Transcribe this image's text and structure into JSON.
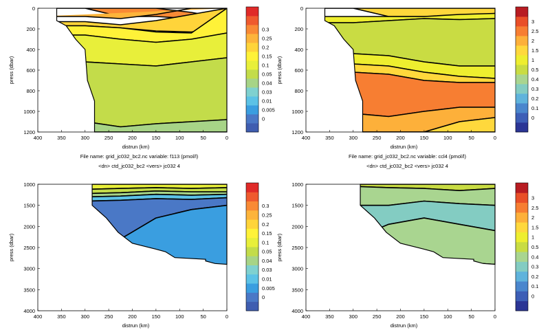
{
  "palettes": {
    "f113": [
      "#3f5db0",
      "#4a78c6",
      "#3a9ee0",
      "#5cc2e6",
      "#7fd1d0",
      "#a7d487",
      "#c3dc4a",
      "#e8ef3a",
      "#fff238",
      "#ffd43a",
      "#fdb43b",
      "#f98a35",
      "#ef5a2e",
      "#e02a28"
    ],
    "ccl4": [
      "#2b3595",
      "#3d5eb6",
      "#4a86cd",
      "#5fb3dc",
      "#83ccc2",
      "#a9d590",
      "#c9dc43",
      "#eeee2f",
      "#ffd83c",
      "#fdb03a",
      "#f77e32",
      "#e94f28",
      "#b81c22"
    ]
  },
  "chart_data": [
    {
      "id": "top-left",
      "type": "contour",
      "palette": "f113",
      "xlabel": "distrun  (km)",
      "ylabel": "press  (dbar)",
      "xlim": [
        400,
        0
      ],
      "ylim": [
        1200,
        0
      ],
      "xticks": [
        "400",
        "350",
        "300",
        "250",
        "200",
        "150",
        "100",
        "50",
        "0"
      ],
      "yticks": [
        "0",
        "200",
        "400",
        "600",
        "800",
        "1000",
        "1200"
      ],
      "colorbar_labels": [
        "0",
        "0.005",
        "0.01",
        "0.03",
        "0.04",
        "0.05",
        "0.1",
        "0.15",
        "0.2",
        "0.25",
        "0.3"
      ],
      "caption_line1": "File name:  grid_jc032_bc2.nc        variable: f113 (pmol/l)",
      "caption_line2": "<dn>  ctd_jc032_bc2  <vers>  jc032     4",
      "bands": [
        {
          "ci": 11,
          "y": [
            [
              0,
              0
            ],
            [
              80,
              0
            ],
            [
              80,
              0
            ],
            [
              100,
              40
            ],
            [
              60,
              100
            ],
            [
              0,
              80
            ]
          ]
        },
        {
          "ci": 10,
          "y": [
            [
              80,
              120
            ],
            [
              100,
              140
            ],
            [
              60,
              160
            ],
            [
              0,
              130
            ]
          ]
        },
        {
          "ci": 9,
          "y": [
            [
              130,
              170
            ],
            [
              160,
              190
            ],
            [
              120,
              220
            ],
            [
              60,
              230
            ],
            [
              0,
              170
            ]
          ]
        },
        {
          "ci": 8,
          "y": [
            [
              170,
              260
            ],
            [
              190,
              300
            ],
            [
              230,
              330
            ],
            [
              240,
              300
            ],
            [
              0,
              240
            ]
          ]
        },
        {
          "ci": 7,
          "y": [
            [
              260,
              520
            ],
            [
              300,
              540
            ],
            [
              330,
              560
            ],
            [
              300,
              520
            ],
            [
              240,
              480
            ]
          ]
        },
        {
          "ci": 6,
          "y": [
            [
              520,
              1100
            ],
            [
              540,
              1150
            ],
            [
              560,
              1120
            ],
            [
              520,
              1100
            ],
            [
              480,
              1080
            ]
          ]
        },
        {
          "ci": 5,
          "y": [
            [
              1100,
              1200
            ],
            [
              1150,
              1200
            ],
            [
              1120,
              1200
            ],
            [
              1100,
              1200
            ],
            [
              1080,
              1200
            ]
          ]
        }
      ]
    },
    {
      "id": "top-right",
      "type": "contour",
      "palette": "ccl4",
      "xlabel": "distrun  (km)",
      "ylabel": "press  (dbar)",
      "xlim": [
        400,
        0
      ],
      "ylim": [
        1200,
        0
      ],
      "xticks": [
        "400",
        "350",
        "300",
        "250",
        "200",
        "150",
        "100",
        "50",
        "0"
      ],
      "yticks": [
        "0",
        "200",
        "400",
        "600",
        "800",
        "1000",
        "1200"
      ],
      "colorbar_labels": [
        "0",
        "0.1",
        "0.2",
        "0.3",
        "0.4",
        "0.5",
        "1",
        "1.5",
        "2",
        "2.5",
        "3"
      ],
      "caption_line1": "File name:  grid_jc032_bc2.nc        variable: ccl4 (pmol/l)",
      "caption_line2": "<dn>  ctd_jc032_bc2  <vers>  jc032     4",
      "bands": [
        {
          "ci": 8,
          "y": [
            [
              0,
              0
            ],
            [
              80,
              0
            ],
            [
              80,
              0
            ],
            [
              80,
              0
            ],
            [
              50,
              0
            ]
          ]
        },
        {
          "ci": 7,
          "y": [
            [
              80,
              140
            ],
            [
              80,
              120
            ],
            [
              80,
              100
            ],
            [
              60,
              110
            ],
            [
              50,
              100
            ]
          ]
        },
        {
          "ci": 6,
          "y": [
            [
              140,
              440
            ],
            [
              120,
              460
            ],
            [
              100,
              520
            ],
            [
              110,
              560
            ],
            [
              100,
              560
            ]
          ]
        },
        {
          "ci": 7,
          "y": [
            [
              440,
              540
            ],
            [
              460,
              560
            ],
            [
              520,
              620
            ],
            [
              560,
              660
            ],
            [
              560,
              680
            ]
          ]
        },
        {
          "ci": 8,
          "y": [
            [
              540,
              620
            ],
            [
              560,
              640
            ],
            [
              620,
              700
            ],
            [
              660,
              720
            ],
            [
              680,
              720
            ]
          ]
        },
        {
          "ci": 10,
          "y": [
            [
              620,
              1020
            ],
            [
              640,
              1050
            ],
            [
              700,
              1000
            ],
            [
              720,
              960
            ],
            [
              720,
              960
            ]
          ]
        },
        {
          "ci": 9,
          "y": [
            [
              1020,
              1200
            ],
            [
              1050,
              1200
            ],
            [
              1000,
              1200
            ],
            [
              960,
              1100
            ],
            [
              960,
              1060
            ]
          ]
        },
        {
          "ci": 8,
          "y": [
            [
              1200,
              1200
            ],
            [
              1200,
              1200
            ],
            [
              1200,
              1200
            ],
            [
              1100,
              1200
            ],
            [
              1060,
              1200
            ]
          ]
        }
      ]
    },
    {
      "id": "bottom-left",
      "type": "contour",
      "palette": "f113",
      "xlabel": "distrun  (km)",
      "ylabel": "press  (dbar)",
      "xlim": [
        400,
        0
      ],
      "ylim": [
        4000,
        1000
      ],
      "xticks": [
        "400",
        "350",
        "300",
        "250",
        "200",
        "150",
        "100",
        "50",
        "0"
      ],
      "yticks": [
        "1000",
        "1500",
        "2000",
        "2500",
        "3000",
        "3500",
        "4000"
      ],
      "colorbar_labels": [
        "0",
        "0.005",
        "0.01",
        "0.03",
        "0.04",
        "0.05",
        "0.1",
        "0.15",
        "0.2",
        "0.25",
        "0.3"
      ],
      "caption_line1": "",
      "caption_line2": "",
      "bands": [
        {
          "ci": 8,
          "y": [
            [
              1000,
              1000
            ],
            [
              1000,
              1000
            ],
            [
              1000,
              1000
            ],
            [
              1000,
              1000
            ],
            [
              1000,
              1000
            ]
          ]
        },
        {
          "ci": 7,
          "y": [
            [
              1000,
              1120
            ],
            [
              1000,
              1100
            ],
            [
              1000,
              1080
            ],
            [
              1000,
              1100
            ],
            [
              1000,
              1080
            ]
          ]
        },
        {
          "ci": 6,
          "y": [
            [
              1120,
              1220
            ],
            [
              1100,
              1200
            ],
            [
              1080,
              1160
            ],
            [
              1100,
              1180
            ],
            [
              1080,
              1180
            ]
          ]
        },
        {
          "ci": 5,
          "y": [
            [
              1220,
              1300
            ],
            [
              1200,
              1280
            ],
            [
              1160,
              1240
            ],
            [
              1180,
              1260
            ],
            [
              1180,
              1240
            ]
          ]
        },
        {
          "ci": 3,
          "y": [
            [
              1300,
              1400
            ],
            [
              1280,
              1380
            ],
            [
              1240,
              1340
            ],
            [
              1260,
              1360
            ],
            [
              1240,
              1320
            ]
          ]
        },
        {
          "ci": 1,
          "y": [
            [
              1400,
              2400
            ],
            [
              1380,
              2300
            ],
            [
              1340,
              1800
            ],
            [
              1360,
              1600
            ],
            [
              1320,
              1500
            ]
          ]
        },
        {
          "ci": 2,
          "y": [
            [
              2400,
              2600
            ],
            [
              2300,
              2700
            ],
            [
              1800,
              2800
            ],
            [
              1600,
              2900
            ],
            [
              1500,
              3000
            ]
          ]
        }
      ]
    },
    {
      "id": "bottom-right",
      "type": "contour",
      "palette": "ccl4",
      "xlabel": "distrun  (km)",
      "ylabel": "press  (dbar)",
      "xlim": [
        400,
        0
      ],
      "ylim": [
        4000,
        1000
      ],
      "xticks": [
        "400",
        "350",
        "300",
        "250",
        "200",
        "150",
        "100",
        "50",
        "0"
      ],
      "yticks": [
        "1000",
        "1500",
        "2000",
        "2500",
        "3000",
        "3500",
        "4000"
      ],
      "colorbar_labels": [
        "0",
        "0.1",
        "0.2",
        "0.3",
        "0.4",
        "0.5",
        "1",
        "1.5",
        "2",
        "2.5",
        "3"
      ],
      "caption_line1": "",
      "caption_line2": "",
      "bands": [
        {
          "ci": 6,
          "y": [
            [
              1000,
              1050
            ],
            [
              1000,
              1080
            ],
            [
              1000,
              1100
            ],
            [
              1000,
              1150
            ],
            [
              1000,
              1100
            ]
          ]
        },
        {
          "ci": 5,
          "y": [
            [
              1050,
              1500
            ],
            [
              1080,
              1500
            ],
            [
              1100,
              1400
            ],
            [
              1150,
              1460
            ],
            [
              1100,
              1500
            ]
          ]
        },
        {
          "ci": 4,
          "y": [
            [
              1500,
              2300
            ],
            [
              1500,
              1950
            ],
            [
              1400,
              1800
            ],
            [
              1460,
              1950
            ],
            [
              1500,
              2100
            ]
          ]
        },
        {
          "ci": 5,
          "y": [
            [
              2300,
              2600
            ],
            [
              1950,
              2700
            ],
            [
              1800,
              2750
            ],
            [
              1950,
              2850
            ],
            [
              2100,
              2900
            ]
          ]
        },
        {
          "ci": 3,
          "y": [
            [
              2600,
              2600
            ],
            [
              2700,
              2700
            ],
            [
              2750,
              2750
            ],
            [
              2850,
              2850
            ],
            [
              2900,
              2900
            ]
          ]
        }
      ]
    }
  ]
}
